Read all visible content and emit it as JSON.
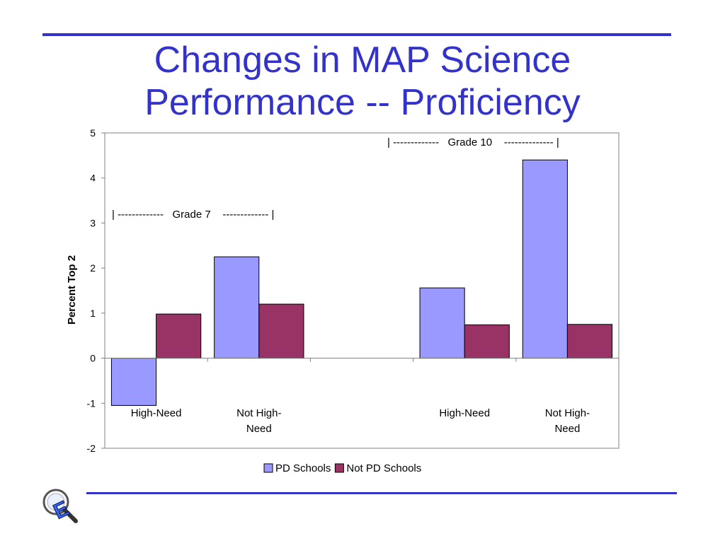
{
  "slide": {
    "title_line1": "Changes in MAP Science",
    "title_line2": "Performance -- Proficiency"
  },
  "chart_data": {
    "type": "bar",
    "title": "",
    "ylabel": "Percent Top 2",
    "xlabel": "",
    "ylim": [
      -2,
      5
    ],
    "yticks": [
      -2,
      -1,
      0,
      1,
      2,
      3,
      4,
      5
    ],
    "grid": false,
    "legend_position": "bottom",
    "categories": [
      "High-Need",
      "Not High-Need",
      "",
      "High-Need",
      "Not High-Need"
    ],
    "category_label_lines": [
      [
        "High-Need"
      ],
      [
        "Not High-",
        "Need"
      ],
      [],
      [
        "High-Need"
      ],
      [
        "Not High-",
        "Need"
      ]
    ],
    "series": [
      {
        "name": "PD Schools",
        "color": "#9999ff",
        "values": [
          -1.05,
          2.25,
          null,
          1.56,
          4.4
        ]
      },
      {
        "name": "Not PD Schools",
        "color": "#993366",
        "values": [
          0.98,
          1.2,
          null,
          0.74,
          0.75
        ]
      }
    ],
    "annotations": [
      {
        "text": "| -------------   Grade 7    ------------- |",
        "group": "Grade 7"
      },
      {
        "text": "| -------------   Grade 10    -------------- |",
        "group": "Grade 10"
      }
    ]
  },
  "colors": {
    "title": "#3333cc",
    "rule": "#3333cc"
  },
  "logo": {
    "icon": "magnifier-e-logo-icon"
  }
}
